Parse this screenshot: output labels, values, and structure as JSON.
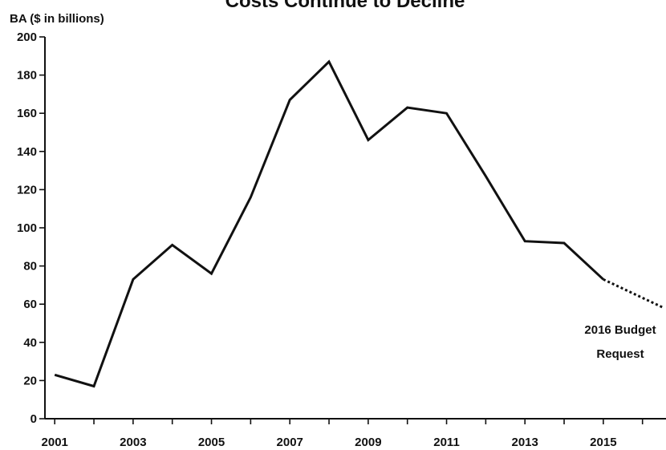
{
  "chart_data": {
    "type": "line",
    "title": "Costs Continue to Decline",
    "ylabel": "BA ($ in billions)",
    "xlabel": "",
    "ylim": [
      0,
      200
    ],
    "xlim": [
      2000.75,
      2016.6
    ],
    "yticks": [
      0,
      20,
      40,
      60,
      80,
      100,
      120,
      140,
      160,
      180,
      200
    ],
    "xticks_labeled": [
      2001,
      2003,
      2005,
      2007,
      2009,
      2011,
      2013,
      2015
    ],
    "xticks_minor": [
      2002,
      2004,
      2006,
      2008,
      2010,
      2012,
      2014,
      2016
    ],
    "grid": false,
    "legend": "none",
    "series": [
      {
        "style": "solid",
        "x": [
          2001,
          2002,
          2003,
          2004,
          2005,
          2006,
          2007,
          2008,
          2009,
          2010,
          2011,
          2012,
          2013,
          2014,
          2015
        ],
        "y": [
          23,
          17,
          73,
          91,
          76,
          116,
          167,
          187,
          146,
          163,
          160,
          127,
          93,
          92,
          73
        ]
      },
      {
        "style": "dashed",
        "x": [
          2015,
          2016.55
        ],
        "y": [
          73,
          58
        ]
      }
    ],
    "annotation": {
      "lines": [
        "2016 Budget",
        "Request"
      ]
    }
  }
}
